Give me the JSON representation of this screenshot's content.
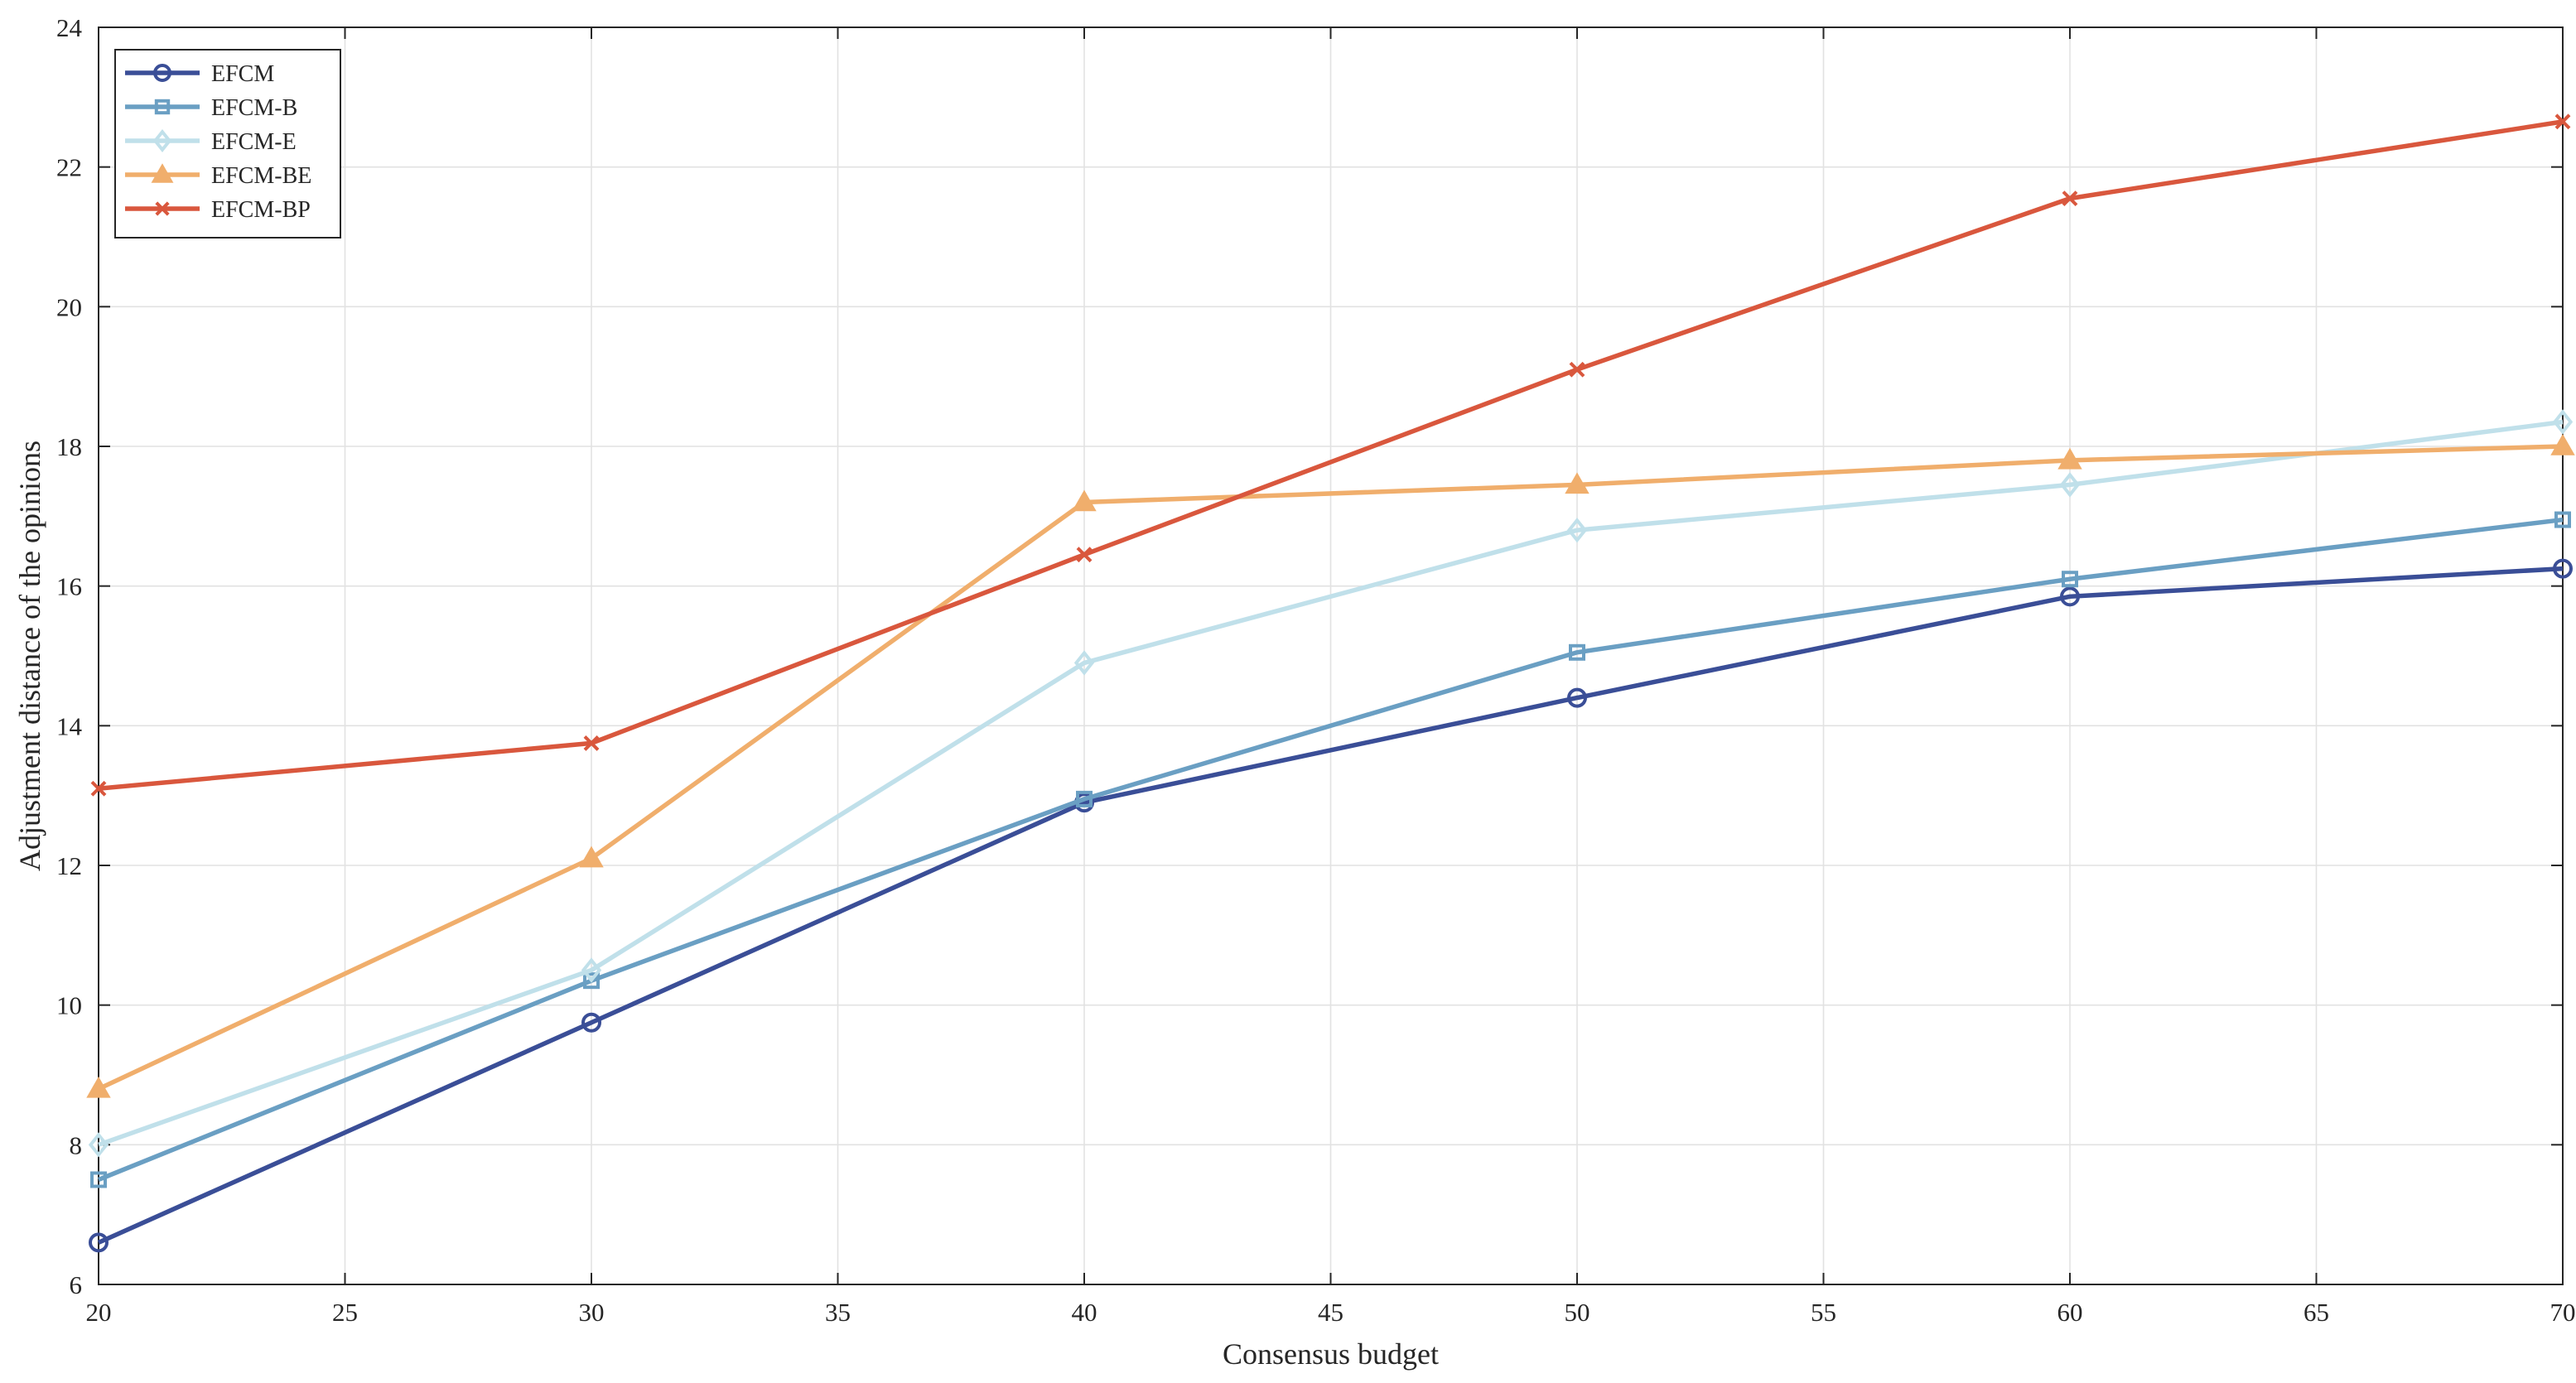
{
  "chart_data": {
    "type": "line",
    "title": "",
    "xlabel": "Consensus budget",
    "ylabel": "Adjustment distance of the opinions",
    "xlim": [
      20,
      70
    ],
    "ylim": [
      6,
      24
    ],
    "xticks": [
      20,
      25,
      30,
      35,
      40,
      45,
      50,
      55,
      60,
      65,
      70
    ],
    "yticks": [
      6,
      8,
      10,
      12,
      14,
      16,
      18,
      20,
      22,
      24
    ],
    "grid": true,
    "legend_position": "top-left",
    "x": [
      20,
      30,
      40,
      50,
      60,
      70
    ],
    "series": [
      {
        "name": "EFCM",
        "color": "#3a4e97",
        "marker": "circle",
        "values": [
          6.6,
          9.75,
          12.9,
          14.4,
          15.85,
          16.25
        ]
      },
      {
        "name": "EFCM-B",
        "color": "#6a9fc3",
        "marker": "square",
        "values": [
          7.5,
          10.35,
          12.95,
          15.05,
          16.1,
          16.95
        ]
      },
      {
        "name": "EFCM-E",
        "color": "#c0e0ea",
        "marker": "diamond",
        "values": [
          8.0,
          10.5,
          14.9,
          16.8,
          17.45,
          18.35
        ]
      },
      {
        "name": "EFCM-BE",
        "color": "#f0ae6c",
        "marker": "triangle",
        "values": [
          8.8,
          12.1,
          17.2,
          17.45,
          17.8,
          18.0
        ]
      },
      {
        "name": "EFCM-BP",
        "color": "#d9573d",
        "marker": "cross",
        "values": [
          13.1,
          13.75,
          16.45,
          19.1,
          21.55,
          22.65
        ]
      }
    ]
  }
}
